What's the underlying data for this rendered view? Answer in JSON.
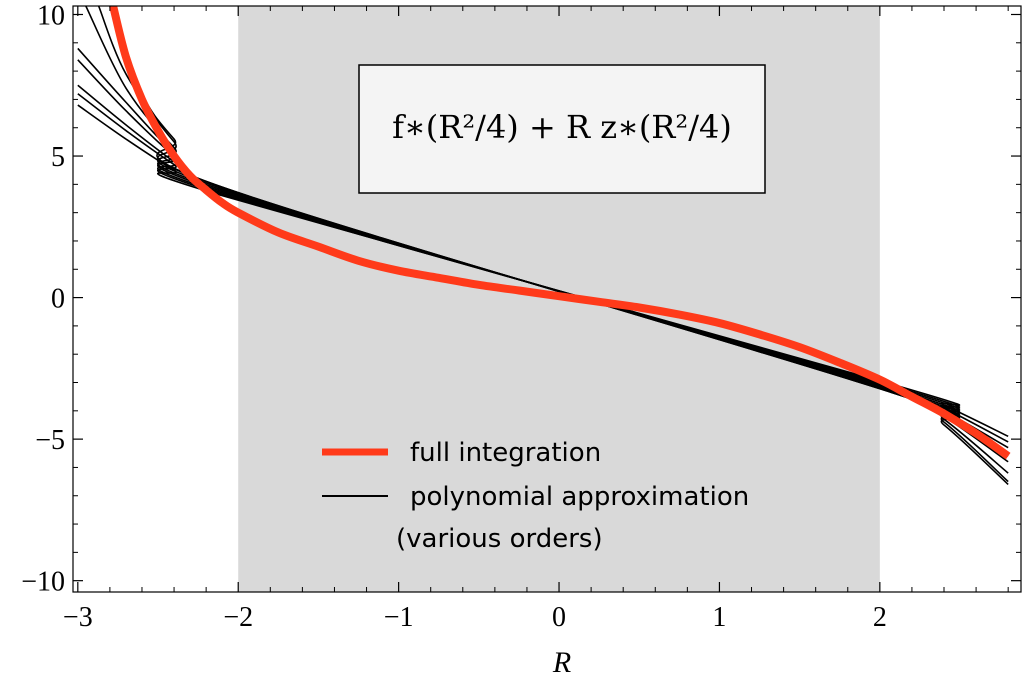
{
  "chart_data": {
    "type": "line",
    "xlabel": "R",
    "ylabel": "",
    "xlim": [
      -3.03,
      2.88
    ],
    "ylim": [
      -10.4,
      10.3
    ],
    "x_ticks": [
      -3,
      -2,
      -1,
      0,
      1,
      2
    ],
    "x_tick_labels": [
      "−3",
      "−2",
      "−1",
      "0",
      "1",
      "2"
    ],
    "y_ticks": [
      -10,
      -5,
      0,
      5,
      10
    ],
    "y_tick_labels": [
      "−10",
      "−5",
      "0",
      "5",
      "10"
    ],
    "shaded_region": {
      "x_from": -2,
      "x_to": 2,
      "color": "#d9d9d9"
    },
    "formula_label": "f∗(R²/4) + R z∗(R²/4)",
    "legend": {
      "placement": "bottom-center",
      "entries": [
        {
          "label": "full integration",
          "color": "#ff3a1a"
        },
        {
          "label": "polynomial approximation",
          "label_line2": "(various orders)",
          "color": "#000000"
        }
      ]
    },
    "series": [
      {
        "name": "full integration",
        "color": "#ff3a1a",
        "x": [
          -2.78,
          -2.7,
          -2.6,
          -2.5,
          -2.4,
          -2.3,
          -2.2,
          -2.1,
          -2.0,
          -1.75,
          -1.5,
          -1.25,
          -1.0,
          -0.75,
          -0.5,
          -0.25,
          0.0,
          0.25,
          0.5,
          0.75,
          1.0,
          1.25,
          1.5,
          1.75,
          2.0,
          2.2,
          2.4,
          2.6,
          2.8
        ],
        "y": [
          10.3,
          8.5,
          7.0,
          5.9,
          5.0,
          4.3,
          3.8,
          3.35,
          3.0,
          2.3,
          1.8,
          1.3,
          0.95,
          0.7,
          0.45,
          0.25,
          0.05,
          -0.15,
          -0.35,
          -0.6,
          -0.9,
          -1.3,
          -1.75,
          -2.3,
          -2.9,
          -3.5,
          -4.1,
          -4.8,
          -5.6
        ]
      },
      {
        "name": "",
        "color": "#000000",
        "x": [
          -3.0,
          -2.7,
          -2.4,
          -2.1,
          2.1,
          2.4,
          2.8
        ],
        "y": [
          6.8,
          5.6,
          4.5,
          3.6,
          -3.1,
          -3.8,
          -4.9
        ]
      },
      {
        "name": "",
        "color": "#000000",
        "x": [
          -3.0,
          -2.7,
          -2.4,
          -2.1,
          2.1,
          2.4,
          2.8
        ],
        "y": [
          7.2,
          5.9,
          4.7,
          3.65,
          -3.15,
          -3.9,
          -5.1
        ]
      },
      {
        "name": "",
        "color": "#000000",
        "x": [
          -3.0,
          -2.7,
          -2.4,
          -2.1,
          2.1,
          2.4,
          2.8
        ],
        "y": [
          7.5,
          6.1,
          4.8,
          3.7,
          -3.2,
          -4.0,
          -5.3
        ]
      },
      {
        "name": "",
        "color": "#000000",
        "x": [
          -3.0,
          -2.7,
          -2.4,
          -2.1,
          2.1,
          2.4,
          2.8
        ],
        "y": [
          8.4,
          6.6,
          5.0,
          3.75,
          -3.25,
          -4.1,
          -5.6
        ]
      },
      {
        "name": "",
        "color": "#000000",
        "x": [
          -3.0,
          -2.7,
          -2.4,
          -2.1,
          2.1,
          2.4,
          2.8
        ],
        "y": [
          8.8,
          6.9,
          5.1,
          3.8,
          -3.3,
          -4.2,
          -5.8
        ]
      },
      {
        "name": "",
        "color": "#000000",
        "x": [
          -2.95,
          -2.7,
          -2.4,
          -2.1,
          2.1,
          2.4,
          2.8
        ],
        "y": [
          10.3,
          7.4,
          5.3,
          3.85,
          -3.35,
          -4.3,
          -6.2
        ]
      },
      {
        "name": "",
        "color": "#000000",
        "x": [
          -2.87,
          -2.7,
          -2.4,
          -2.1,
          2.1,
          2.4,
          2.8
        ],
        "y": [
          10.3,
          7.9,
          5.5,
          3.9,
          -3.4,
          -4.4,
          -6.5
        ]
      },
      {
        "name": "",
        "color": "#000000",
        "x": [
          -2.8,
          -2.6,
          -2.4,
          -2.1,
          2.1,
          2.4,
          2.8
        ],
        "y": [
          10.3,
          7.2,
          5.6,
          3.9,
          -3.4,
          -4.5,
          -6.6
        ]
      }
    ]
  }
}
